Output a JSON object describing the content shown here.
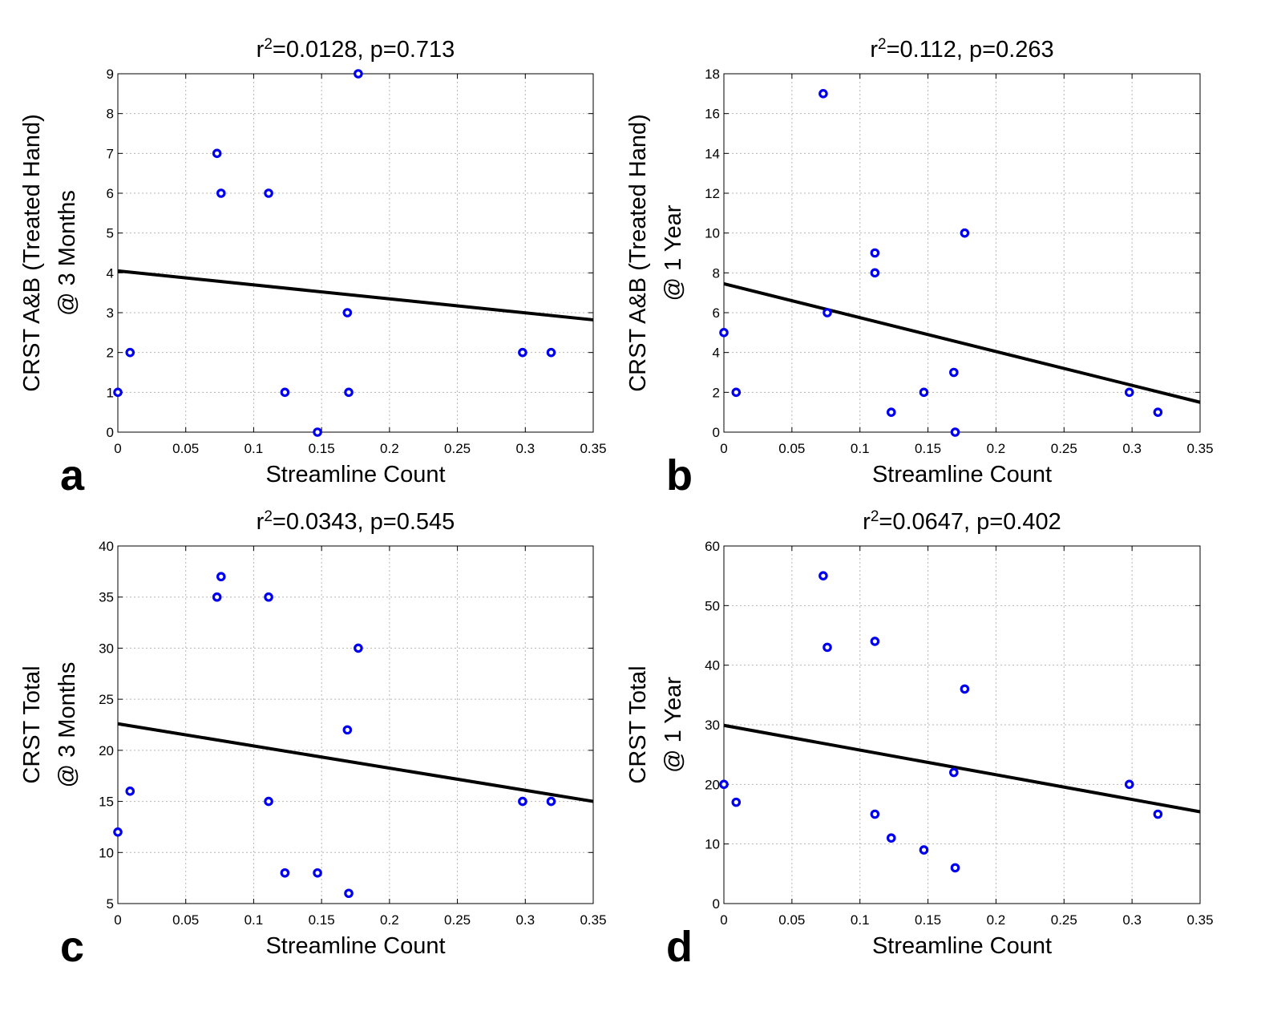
{
  "chart_data": [
    {
      "type": "scatter",
      "panel": "a",
      "title_prefix": "r",
      "title_sup": "2",
      "title_suffix": "=0.0128, p=0.713",
      "xlabel": "Streamline Count",
      "ylabel": [
        "CRST A&B (Treated Hand)",
        "@ 3 Months"
      ],
      "xlim": [
        0,
        0.35
      ],
      "ylim": [
        0,
        9
      ],
      "xticks": [
        "0",
        "0.05",
        "0.1",
        "0.15",
        "0.2",
        "0.25",
        "0.3",
        "0.35"
      ],
      "yticks": [
        "0",
        "1",
        "2",
        "3",
        "4",
        "5",
        "6",
        "7",
        "8",
        "9"
      ],
      "grid": true,
      "series": [
        {
          "name": "data",
          "x": [
            0,
            0.009,
            0.073,
            0.076,
            0.111,
            0.123,
            0.147,
            0.169,
            0.17,
            0.177,
            0.298,
            0.319
          ],
          "y": [
            1,
            2,
            7,
            6,
            6,
            1,
            0,
            3,
            1,
            9,
            2,
            2
          ]
        }
      ],
      "fit_line": {
        "x": [
          0,
          0.35
        ],
        "y": [
          4.05,
          2.82
        ]
      },
      "colors": {
        "points": "#0000ee",
        "line": "#000000"
      }
    },
    {
      "type": "scatter",
      "panel": "b",
      "title_prefix": "r",
      "title_sup": "2",
      "title_suffix": "=0.112, p=0.263",
      "xlabel": "Streamline Count",
      "ylabel": [
        "CRST A&B (Treated Hand)",
        "@ 1 Year"
      ],
      "xlim": [
        0,
        0.35
      ],
      "ylim": [
        0,
        18
      ],
      "xticks": [
        "0",
        "0.05",
        "0.1",
        "0.15",
        "0.2",
        "0.25",
        "0.3",
        "0.35"
      ],
      "yticks": [
        "0",
        "2",
        "4",
        "6",
        "8",
        "10",
        "12",
        "14",
        "16",
        "18"
      ],
      "grid": true,
      "series": [
        {
          "name": "data",
          "x": [
            0,
            0.009,
            0.073,
            0.076,
            0.111,
            0.111,
            0.123,
            0.147,
            0.169,
            0.17,
            0.177,
            0.298,
            0.319
          ],
          "y": [
            5,
            2,
            17,
            6,
            9,
            8,
            1,
            2,
            3,
            0,
            10,
            2,
            1
          ]
        }
      ],
      "fit_line": {
        "x": [
          0,
          0.35
        ],
        "y": [
          7.45,
          1.5
        ]
      },
      "colors": {
        "points": "#0000ee",
        "line": "#000000"
      }
    },
    {
      "type": "scatter",
      "panel": "c",
      "title_prefix": "r",
      "title_sup": "2",
      "title_suffix": "=0.0343, p=0.545",
      "xlabel": "Streamline Count",
      "ylabel": [
        "CRST Total",
        "@ 3 Months"
      ],
      "xlim": [
        0,
        0.35
      ],
      "ylim": [
        5,
        40
      ],
      "xticks": [
        "0",
        "0.05",
        "0.1",
        "0.15",
        "0.2",
        "0.25",
        "0.3",
        "0.35"
      ],
      "yticks": [
        "5",
        "10",
        "15",
        "20",
        "25",
        "30",
        "35",
        "40"
      ],
      "grid": true,
      "series": [
        {
          "name": "data",
          "x": [
            0,
            0.009,
            0.073,
            0.076,
            0.111,
            0.111,
            0.123,
            0.147,
            0.169,
            0.17,
            0.177,
            0.298,
            0.319
          ],
          "y": [
            12,
            16,
            35,
            37,
            35,
            15,
            8,
            8,
            22,
            6,
            30,
            15,
            15
          ]
        }
      ],
      "fit_line": {
        "x": [
          0,
          0.35
        ],
        "y": [
          22.6,
          15.0
        ]
      },
      "colors": {
        "points": "#0000ee",
        "line": "#000000"
      }
    },
    {
      "type": "scatter",
      "panel": "d",
      "title_prefix": "r",
      "title_sup": "2",
      "title_suffix": "=0.0647, p=0.402",
      "xlabel": "Streamline Count",
      "ylabel": [
        "CRST Total",
        "@ 1 Year"
      ],
      "xlim": [
        0,
        0.35
      ],
      "ylim": [
        0,
        60
      ],
      "xticks": [
        "0",
        "0.05",
        "0.1",
        "0.15",
        "0.2",
        "0.25",
        "0.3",
        "0.35"
      ],
      "yticks": [
        "0",
        "10",
        "20",
        "30",
        "40",
        "50",
        "60"
      ],
      "grid": true,
      "series": [
        {
          "name": "data",
          "x": [
            0,
            0.009,
            0.073,
            0.076,
            0.111,
            0.111,
            0.123,
            0.147,
            0.169,
            0.17,
            0.177,
            0.298,
            0.319
          ],
          "y": [
            20,
            17,
            55,
            43,
            44,
            15,
            11,
            9,
            22,
            6,
            36,
            20,
            15
          ]
        }
      ],
      "fit_line": {
        "x": [
          0,
          0.35
        ],
        "y": [
          29.9,
          15.4
        ]
      },
      "colors": {
        "points": "#0000ee",
        "line": "#000000"
      }
    }
  ]
}
